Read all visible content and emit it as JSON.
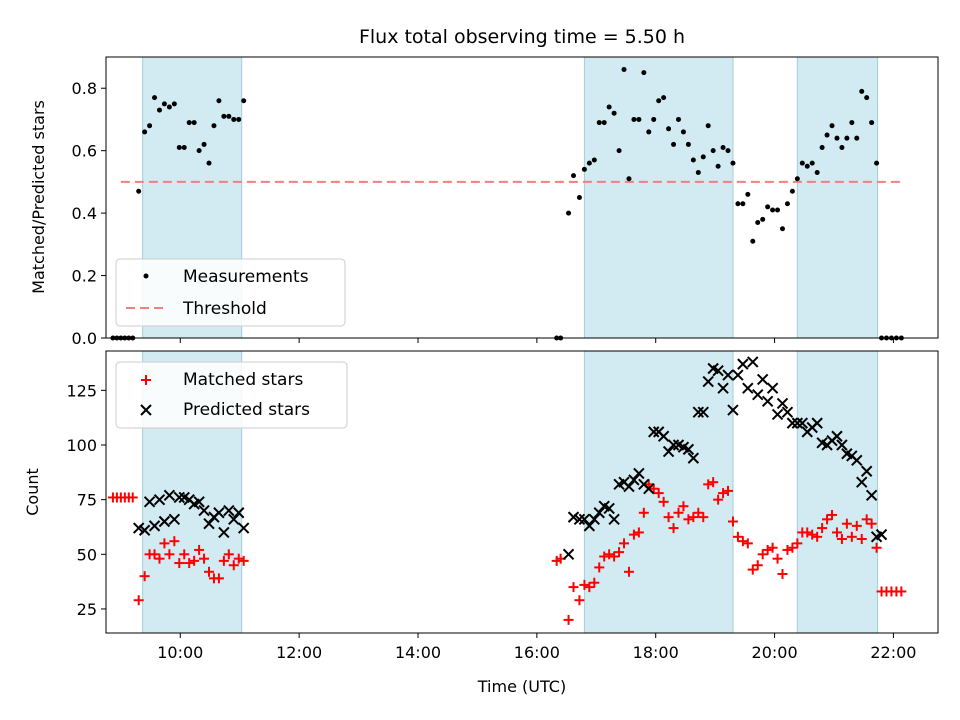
{
  "colors": {
    "shade": "#add8e6",
    "measurement": "#000000",
    "threshold": "#f08080",
    "matched": "#ff0000",
    "predicted": "#000000"
  },
  "chart_data": [
    {
      "type": "scatter",
      "title": "Flux total observing time = 5.50 h",
      "ylabel": "Matched/Predicted stars",
      "xlabel": "",
      "xlim": [
        "08:45",
        "22:45"
      ],
      "ylim": [
        0,
        0.9
      ],
      "yticks": [
        0.0,
        0.2,
        0.4,
        0.6,
        0.8
      ],
      "ytick_labels": [
        "0.0",
        "0.2",
        "0.4",
        "0.6",
        "0.8"
      ],
      "grid": false,
      "legend_position": "lower-left",
      "shaded_intervals": [
        [
          "09:22",
          "11:02"
        ],
        [
          "16:48",
          "19:18"
        ],
        [
          "20:23",
          "21:44"
        ]
      ],
      "threshold": {
        "name": "Threshold",
        "value": 0.5,
        "x_range": [
          "09:00",
          "22:10"
        ]
      },
      "series": [
        {
          "name": "Measurements",
          "marker": "dot",
          "x": [
            "08:52",
            "08:56",
            "09:00",
            "09:04",
            "09:08",
            "09:12",
            "09:18",
            "09:24",
            "09:29",
            "09:34",
            "09:39",
            "09:44",
            "09:49",
            "09:54",
            "09:59",
            "10:04",
            "10:09",
            "10:14",
            "10:19",
            "10:24",
            "10:29",
            "10:34",
            "10:39",
            "10:44",
            "10:49",
            "10:54",
            "10:59",
            "11:04",
            "16:20",
            "16:24",
            "16:32",
            "16:37",
            "16:43",
            "16:48",
            "16:53",
            "16:58",
            "17:03",
            "17:08",
            "17:13",
            "17:18",
            "17:23",
            "17:28",
            "17:33",
            "17:38",
            "17:43",
            "17:48",
            "17:53",
            "17:58",
            "18:03",
            "18:08",
            "18:13",
            "18:18",
            "18:23",
            "18:28",
            "18:33",
            "18:38",
            "18:43",
            "18:48",
            "18:53",
            "18:58",
            "19:03",
            "19:08",
            "19:13",
            "19:18",
            "19:23",
            "19:28",
            "19:33",
            "19:38",
            "19:43",
            "19:48",
            "19:53",
            "19:58",
            "20:03",
            "20:08",
            "20:13",
            "20:18",
            "20:23",
            "20:28",
            "20:33",
            "20:38",
            "20:43",
            "20:48",
            "20:53",
            "20:58",
            "21:03",
            "21:08",
            "21:13",
            "21:18",
            "21:23",
            "21:28",
            "21:33",
            "21:38",
            "21:43",
            "21:48",
            "21:53",
            "21:58",
            "22:03",
            "22:08"
          ],
          "y": [
            0.0,
            0.0,
            0.0,
            0.0,
            0.0,
            0.0,
            0.47,
            0.66,
            0.68,
            0.77,
            0.73,
            0.75,
            0.74,
            0.75,
            0.61,
            0.61,
            0.69,
            0.69,
            0.6,
            0.62,
            0.56,
            0.68,
            0.76,
            0.71,
            0.71,
            0.7,
            0.7,
            0.76,
            0.0,
            0.0,
            0.4,
            0.52,
            0.45,
            0.54,
            0.56,
            0.57,
            0.69,
            0.69,
            0.74,
            0.72,
            0.6,
            0.86,
            0.51,
            0.7,
            0.7,
            0.85,
            0.66,
            0.7,
            0.76,
            0.77,
            0.67,
            0.62,
            0.7,
            0.66,
            0.62,
            0.57,
            0.53,
            0.58,
            0.68,
            0.6,
            0.55,
            0.61,
            0.6,
            0.56,
            0.43,
            0.43,
            0.46,
            0.31,
            0.37,
            0.38,
            0.42,
            0.41,
            0.41,
            0.35,
            0.43,
            0.47,
            0.51,
            0.56,
            0.55,
            0.56,
            0.53,
            0.61,
            0.65,
            0.68,
            0.64,
            0.61,
            0.64,
            0.69,
            0.64,
            0.79,
            0.77,
            0.69,
            0.56,
            0.0,
            0.0,
            0.0,
            0.0,
            0.0
          ]
        }
      ]
    },
    {
      "type": "scatter",
      "title": "",
      "ylabel": "Count",
      "xlabel": "Time (UTC)",
      "xlim": [
        "08:45",
        "22:45"
      ],
      "ylim": [
        14,
        143
      ],
      "xticks": [
        "10:00",
        "12:00",
        "14:00",
        "16:00",
        "18:00",
        "20:00",
        "22:00"
      ],
      "yticks": [
        25,
        50,
        75,
        100,
        125
      ],
      "ytick_labels": [
        "25",
        "50",
        "75",
        "100",
        "125"
      ],
      "grid": false,
      "legend_position": "upper-left",
      "shaded_intervals": [
        [
          "09:22",
          "11:02"
        ],
        [
          "16:48",
          "19:18"
        ],
        [
          "20:23",
          "21:44"
        ]
      ],
      "series": [
        {
          "name": "Matched stars",
          "marker": "plus",
          "x": [
            "08:52",
            "08:56",
            "09:00",
            "09:04",
            "09:08",
            "09:12",
            "09:18",
            "09:24",
            "09:29",
            "09:34",
            "09:39",
            "09:44",
            "09:49",
            "09:54",
            "09:59",
            "10:04",
            "10:09",
            "10:14",
            "10:19",
            "10:24",
            "10:29",
            "10:34",
            "10:39",
            "10:44",
            "10:49",
            "10:54",
            "10:59",
            "11:04",
            "16:20",
            "16:24",
            "16:32",
            "16:37",
            "16:43",
            "16:48",
            "16:53",
            "16:58",
            "17:03",
            "17:08",
            "17:13",
            "17:18",
            "17:23",
            "17:28",
            "17:33",
            "17:38",
            "17:43",
            "17:48",
            "17:53",
            "17:58",
            "18:03",
            "18:08",
            "18:13",
            "18:18",
            "18:23",
            "18:28",
            "18:33",
            "18:38",
            "18:43",
            "18:48",
            "18:53",
            "18:58",
            "19:03",
            "19:08",
            "19:13",
            "19:18",
            "19:23",
            "19:28",
            "19:33",
            "19:38",
            "19:43",
            "19:48",
            "19:53",
            "19:58",
            "20:03",
            "20:08",
            "20:13",
            "20:18",
            "20:23",
            "20:28",
            "20:33",
            "20:38",
            "20:43",
            "20:48",
            "20:53",
            "20:58",
            "21:03",
            "21:08",
            "21:13",
            "21:18",
            "21:23",
            "21:28",
            "21:33",
            "21:38",
            "21:43",
            "21:48",
            "21:53",
            "21:58",
            "22:03",
            "22:08"
          ],
          "y": [
            76,
            76,
            76,
            76,
            76,
            76,
            29,
            40,
            50,
            50,
            48,
            55,
            50,
            56,
            46,
            50,
            46,
            47,
            52,
            48,
            42,
            39,
            39,
            47,
            50,
            45,
            48,
            47,
            47,
            48,
            20,
            35,
            29,
            36,
            35,
            37,
            44,
            49,
            50,
            49,
            51,
            55,
            42,
            59,
            60,
            69,
            82,
            80,
            78,
            74,
            67,
            62,
            69,
            72,
            66,
            67,
            69,
            67,
            82,
            83,
            75,
            78,
            79,
            65,
            58,
            56,
            55,
            43,
            45,
            50,
            52,
            53,
            48,
            41,
            52,
            53,
            55,
            60,
            60,
            59,
            58,
            62,
            66,
            68,
            60,
            57,
            64,
            58,
            63,
            57,
            66,
            64,
            53,
            33,
            33,
            33,
            33,
            33
          ]
        },
        {
          "name": "Predicted stars",
          "marker": "x",
          "x": [
            "09:18",
            "09:24",
            "09:29",
            "09:34",
            "09:39",
            "09:44",
            "09:49",
            "09:54",
            "09:59",
            "10:04",
            "10:09",
            "10:14",
            "10:19",
            "10:24",
            "10:29",
            "10:34",
            "10:39",
            "10:44",
            "10:49",
            "10:54",
            "10:59",
            "11:04",
            "16:32",
            "16:37",
            "16:43",
            "16:48",
            "16:53",
            "16:58",
            "17:03",
            "17:08",
            "17:13",
            "17:18",
            "17:23",
            "17:28",
            "17:33",
            "17:38",
            "17:43",
            "17:48",
            "17:53",
            "17:58",
            "18:03",
            "18:08",
            "18:13",
            "18:18",
            "18:23",
            "18:28",
            "18:33",
            "18:38",
            "18:43",
            "18:48",
            "18:53",
            "18:58",
            "19:03",
            "19:08",
            "19:13",
            "19:18",
            "19:23",
            "19:28",
            "19:33",
            "19:38",
            "19:43",
            "19:48",
            "19:53",
            "19:58",
            "20:03",
            "20:08",
            "20:13",
            "20:18",
            "20:23",
            "20:28",
            "20:33",
            "20:38",
            "20:43",
            "20:48",
            "20:53",
            "20:58",
            "21:03",
            "21:08",
            "21:13",
            "21:18",
            "21:23",
            "21:28",
            "21:33",
            "21:38",
            "21:43",
            "21:48"
          ],
          "y": [
            62,
            61,
            74,
            63,
            75,
            65,
            77,
            66,
            76,
            76,
            75,
            73,
            74,
            70,
            64,
            67,
            69,
            60,
            70,
            66,
            69,
            62,
            50,
            67,
            66,
            66,
            63,
            66,
            69,
            72,
            71,
            66,
            82,
            83,
            81,
            84,
            87,
            82,
            80,
            106,
            106,
            104,
            97,
            100,
            100,
            99,
            98,
            94,
            115,
            115,
            129,
            135,
            134,
            126,
            132,
            116,
            132,
            137,
            126,
            138,
            123,
            130,
            120,
            126,
            114,
            119,
            115,
            110,
            110,
            110,
            106,
            108,
            110,
            101,
            100,
            102,
            104,
            100,
            96,
            95,
            93,
            83,
            88,
            77,
            58,
            59
          ]
        }
      ]
    }
  ]
}
